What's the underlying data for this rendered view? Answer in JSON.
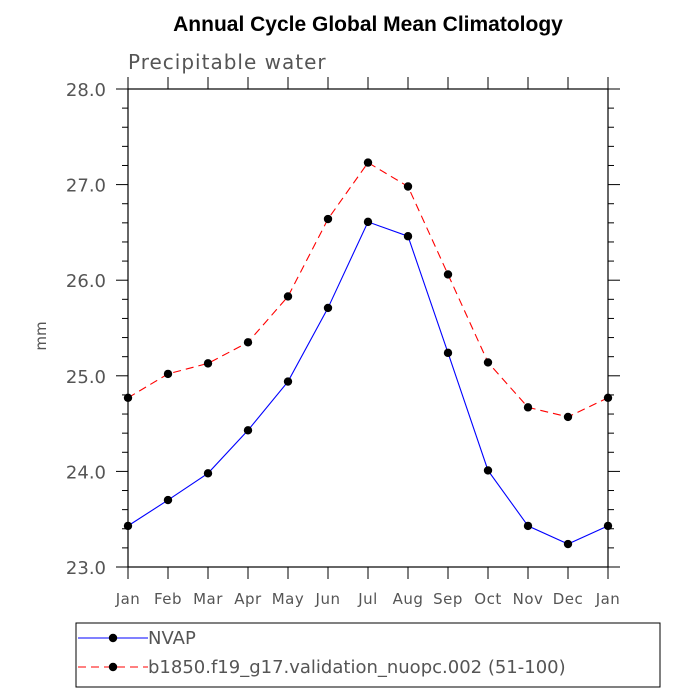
{
  "chart_data": {
    "type": "line",
    "title": "Annual Cycle Global Mean Climatology",
    "subtitle": "Precipitable water",
    "xlabel": "",
    "ylabel": "mm",
    "categories": [
      "Jan",
      "Feb",
      "Mar",
      "Apr",
      "May",
      "Jun",
      "Jul",
      "Aug",
      "Sep",
      "Oct",
      "Nov",
      "Dec",
      "Jan"
    ],
    "ylim": [
      23.0,
      28.0
    ],
    "yticks": [
      "23.0",
      "24.0",
      "25.0",
      "26.0",
      "27.0",
      "28.0"
    ],
    "grid": false,
    "legend_position": "bottom",
    "series": [
      {
        "name": "NVAP",
        "color": "#0000ff",
        "dash": "solid",
        "values": [
          23.43,
          23.7,
          23.98,
          24.43,
          24.94,
          25.71,
          26.61,
          26.46,
          25.24,
          24.01,
          23.43,
          23.24,
          23.43
        ]
      },
      {
        "name": "b1850.f19_g17.validation_nuopc.002 (51-100)",
        "color": "#ff0000",
        "dash": "dashed",
        "values": [
          24.77,
          25.02,
          25.13,
          25.35,
          25.83,
          26.64,
          27.23,
          26.98,
          26.06,
          25.14,
          24.67,
          24.57,
          24.77
        ]
      }
    ]
  }
}
